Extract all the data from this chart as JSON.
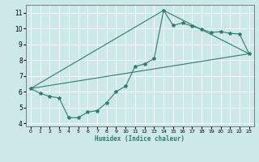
{
  "xlabel": "Humidex (Indice chaleur)",
  "ylabel": "",
  "bg_color": "#cce8e8",
  "grid_color": "#ffffff",
  "line_color": "#2e7d6e",
  "xlim": [
    -0.5,
    23.5
  ],
  "ylim": [
    3.8,
    11.5
  ],
  "xticks": [
    0,
    1,
    2,
    3,
    4,
    5,
    6,
    7,
    8,
    9,
    10,
    11,
    12,
    13,
    14,
    15,
    16,
    17,
    18,
    19,
    20,
    21,
    22,
    23
  ],
  "yticks": [
    4,
    5,
    6,
    7,
    8,
    9,
    10,
    11
  ],
  "series1_x": [
    0,
    1,
    2,
    3,
    4,
    5,
    6,
    7,
    8,
    9,
    10,
    11,
    12,
    13,
    14,
    15,
    16,
    17,
    18,
    19,
    20,
    21,
    22,
    23
  ],
  "series1_y": [
    6.2,
    5.9,
    5.7,
    5.6,
    4.35,
    4.35,
    4.7,
    4.8,
    5.3,
    6.0,
    6.35,
    7.6,
    7.75,
    8.1,
    11.15,
    10.2,
    10.35,
    10.15,
    9.95,
    9.75,
    9.8,
    9.7,
    9.65,
    8.4
  ],
  "series2_x": [
    0,
    23
  ],
  "series2_y": [
    6.2,
    8.4
  ],
  "series3_x": [
    0,
    14,
    23
  ],
  "series3_y": [
    6.2,
    11.15,
    8.4
  ]
}
